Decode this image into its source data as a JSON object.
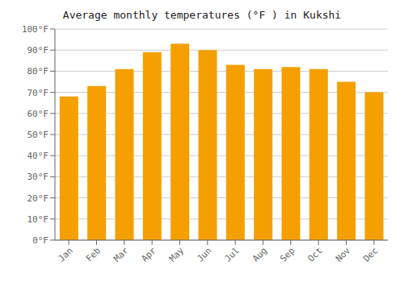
{
  "chart_data": {
    "type": "bar",
    "title": "Average monthly temperatures (°F ) in Kukshi",
    "categories": [
      "Jan",
      "Feb",
      "Mar",
      "Apr",
      "May",
      "Jun",
      "Jul",
      "Aug",
      "Sep",
      "Oct",
      "Nov",
      "Dec"
    ],
    "values": [
      68,
      73,
      81,
      89,
      93,
      90,
      83,
      81,
      82,
      81,
      75,
      70
    ],
    "color": "#F5A000",
    "ylim": [
      0,
      100
    ],
    "yticks": [
      {
        "value": 0,
        "label": "0°F"
      },
      {
        "value": 10,
        "label": "10°F"
      },
      {
        "value": 20,
        "label": "20°F"
      },
      {
        "value": 30,
        "label": "30°F"
      },
      {
        "value": 40,
        "label": "40°F"
      },
      {
        "value": 50,
        "label": "50°F"
      },
      {
        "value": 60,
        "label": "60°F"
      },
      {
        "value": 70,
        "label": "70°F"
      },
      {
        "value": 80,
        "label": "80°F"
      },
      {
        "value": 90,
        "label": "90°F"
      },
      {
        "value": 100,
        "label": "100°F"
      }
    ],
    "grid": true
  }
}
